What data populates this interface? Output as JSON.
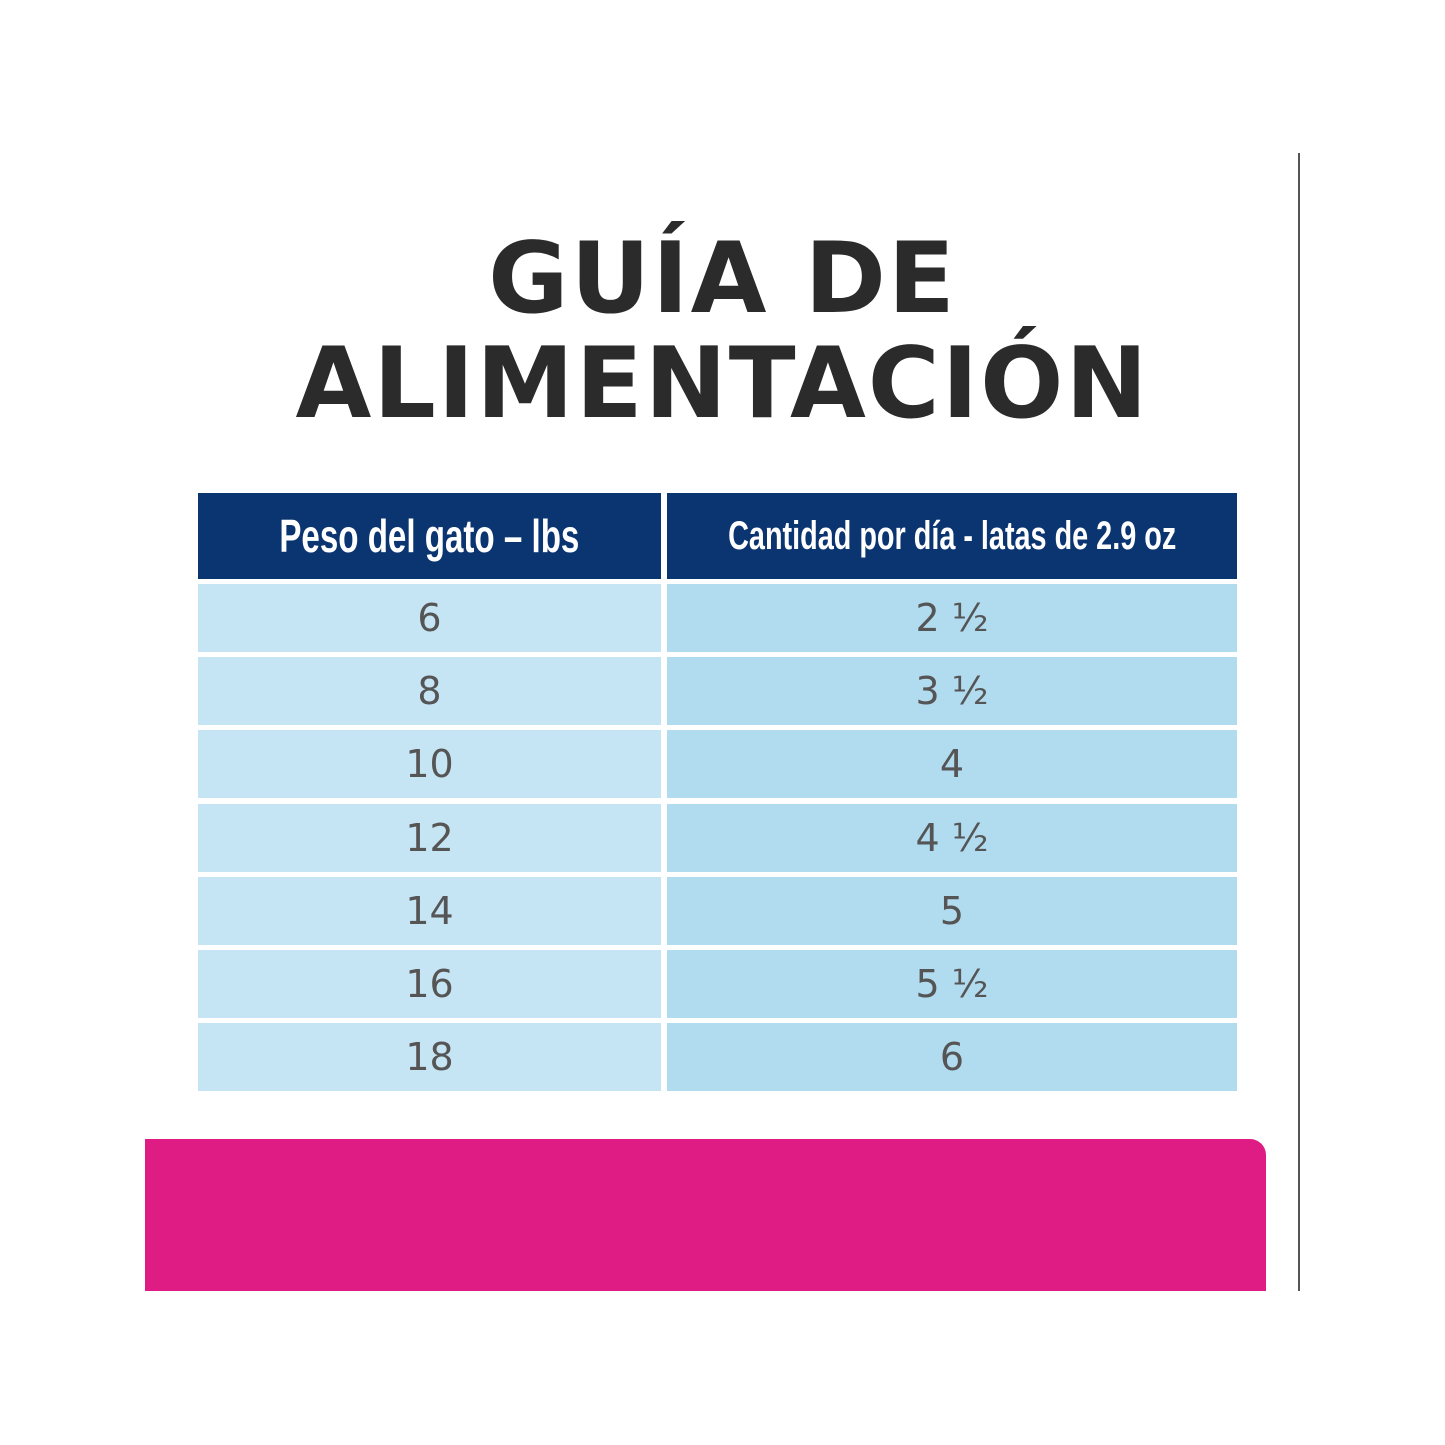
{
  "title": {
    "line1": "GUÍA DE",
    "line2": "ALIMENTACIÓN"
  },
  "table": {
    "headers": [
      "Peso del gato – lbs",
      "Cantidad por día - latas de 2.9 oz"
    ],
    "rows": [
      [
        "6",
        "2 ½"
      ],
      [
        "8",
        "3 ½"
      ],
      [
        "10",
        "4"
      ],
      [
        "12",
        "4 ½"
      ],
      [
        "14",
        "5"
      ],
      [
        "16",
        "5 ½"
      ],
      [
        "18",
        "6"
      ]
    ]
  }
}
